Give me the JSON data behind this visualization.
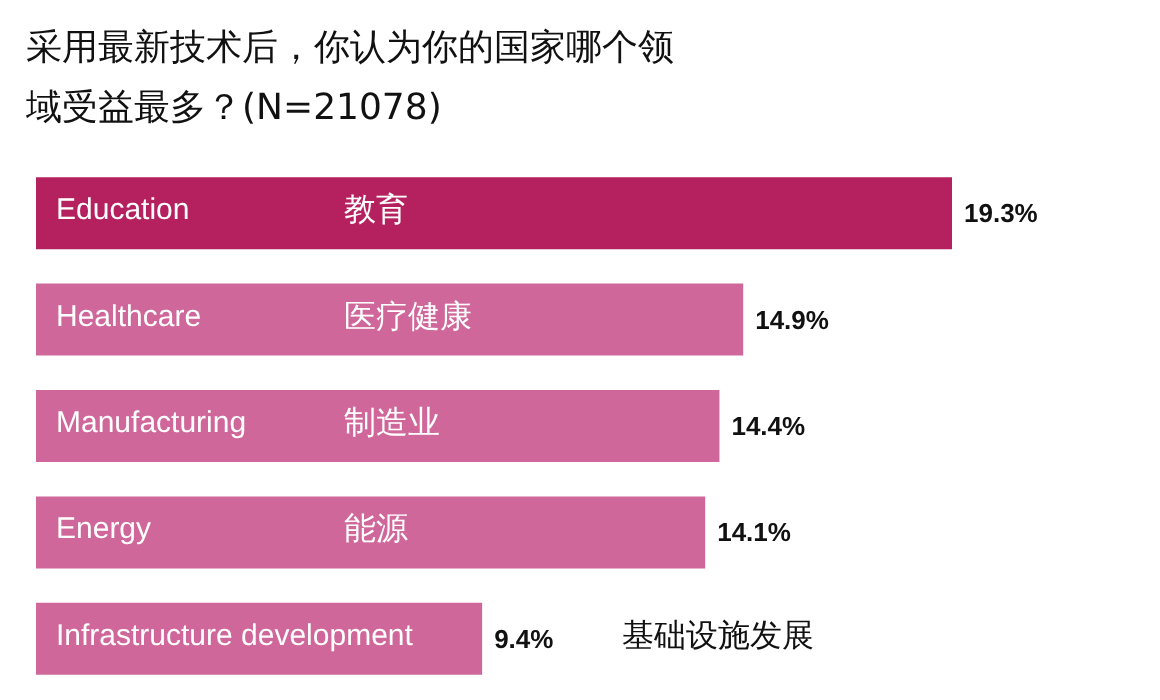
{
  "chart_data": {
    "type": "bar",
    "orientation": "horizontal",
    "title": "采用最新技术后，你认为你的国家哪个领域受益最多？(N=21078)",
    "categories": [
      "Education 教育",
      "Healthcare 医疗健康",
      "Manufacturing 制造业",
      "Energy 能源",
      "Infrastructure development 基础设施发展"
    ],
    "values": [
      19.3,
      14.9,
      14.4,
      14.1,
      9.4
    ],
    "colors": [
      "#b5215f",
      "#d0679a",
      "#d0679a",
      "#d0679a",
      "#d0679a"
    ],
    "value_labels": [
      "19.3%",
      "14.9%",
      "14.4%",
      "14.1%",
      "9.4%"
    ]
  }
}
